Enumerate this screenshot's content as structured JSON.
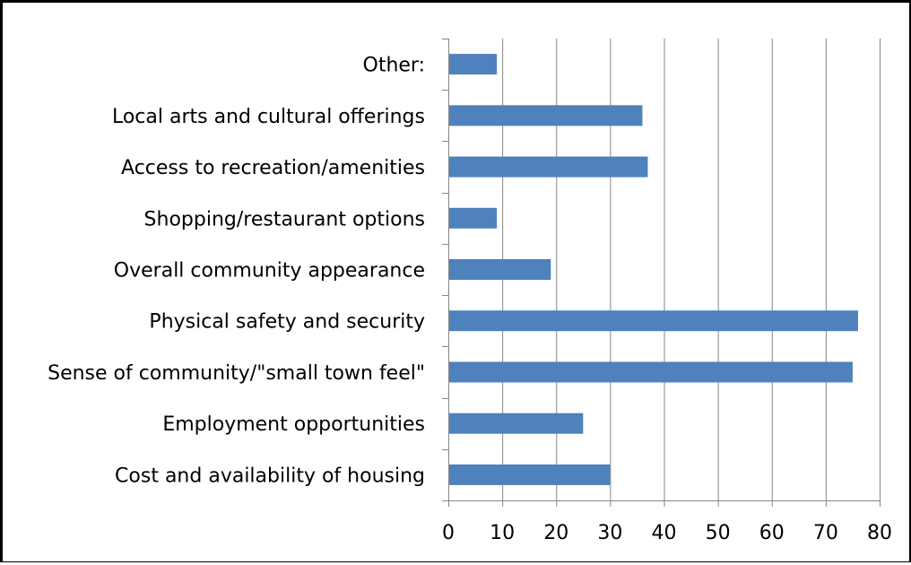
{
  "chart_data": {
    "type": "bar",
    "orientation": "horizontal",
    "categories": [
      "Other:",
      "Local arts and cultural offerings",
      "Access to recreation/amenities",
      "Shopping/restaurant options",
      "Overall community appearance",
      "Physical safety and security",
      "Sense of community/\"small town feel\"",
      "Employment opportunities",
      "Cost and availability of housing"
    ],
    "values": [
      9,
      36,
      37,
      9,
      19,
      76,
      75,
      25,
      30
    ],
    "xlim": [
      0,
      80
    ],
    "xticks": [
      0,
      10,
      20,
      30,
      40,
      50,
      60,
      70,
      80
    ],
    "grid": true,
    "bar_color": "#4f81bd",
    "gridline_color": "#868686"
  }
}
